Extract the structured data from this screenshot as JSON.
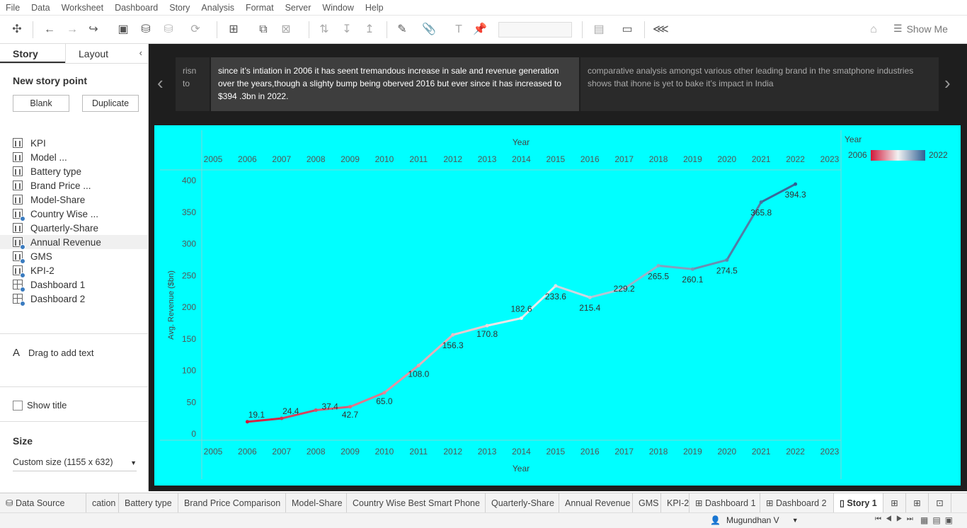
{
  "menu": [
    "File",
    "Data",
    "Worksheet",
    "Dashboard",
    "Story",
    "Analysis",
    "Format",
    "Server",
    "Window",
    "Help"
  ],
  "toolbar": {
    "show_me": "Show Me"
  },
  "sidebar": {
    "tabs": {
      "story": "Story",
      "layout": "Layout"
    },
    "new_story_point": "New story point",
    "blank_button": "Blank",
    "duplicate_button": "Duplicate",
    "sheets": [
      {
        "label": "KPI",
        "type": "sheet",
        "dot": false
      },
      {
        "label": "Model ...",
        "type": "sheet",
        "dot": false
      },
      {
        "label": "Battery type",
        "type": "sheet",
        "dot": false
      },
      {
        "label": "Brand Price ...",
        "type": "sheet",
        "dot": false
      },
      {
        "label": "Model-Share",
        "type": "sheet",
        "dot": false
      },
      {
        "label": "Country Wise ...",
        "type": "sheet",
        "dot": true
      },
      {
        "label": "Quarterly-Share",
        "type": "sheet",
        "dot": false
      },
      {
        "label": "Annual Revenue",
        "type": "sheet",
        "dot": true
      },
      {
        "label": "GMS",
        "type": "sheet",
        "dot": true
      },
      {
        "label": "KPI-2",
        "type": "sheet",
        "dot": true
      },
      {
        "label": "Dashboard 1",
        "type": "dashboard",
        "dot": true
      },
      {
        "label": "Dashboard 2",
        "type": "dashboard",
        "dot": true
      }
    ],
    "drag_text": "Drag to add text",
    "show_title": "Show title",
    "size_title": "Size",
    "size_value": "Custom size (1155 x 632)"
  },
  "story": {
    "captions": [
      {
        "text": "risn to",
        "state": "dim"
      },
      {
        "text": "since it’s intiation in 2006 it has seent tremandous increase   in sale and revenue generation over the  years,though a slighty bump being oberved 2016 but ever since it has increased to $394 .3bn in 2022.",
        "state": "active"
      },
      {
        "text": "comparative analysis amongst various other leading brand in the smatphone industries shows that ihone is yet to bake it’s impact in India",
        "state": "dim"
      }
    ]
  },
  "chart_data": {
    "type": "line",
    "title": "",
    "xlabel": "Year",
    "ylabel": "Avg. Revenue ($bn)",
    "x_ticks": [
      2005,
      2006,
      2007,
      2008,
      2009,
      2010,
      2011,
      2012,
      2013,
      2014,
      2015,
      2016,
      2017,
      2018,
      2019,
      2020,
      2021,
      2022,
      2023
    ],
    "y_ticks": [
      0,
      50,
      100,
      150,
      200,
      250,
      300,
      350,
      400
    ],
    "xlim": [
      2005,
      2023
    ],
    "ylim": [
      0,
      400
    ],
    "x": [
      2006,
      2007,
      2008,
      2009,
      2010,
      2011,
      2012,
      2013,
      2014,
      2015,
      2016,
      2017,
      2018,
      2019,
      2020,
      2021,
      2022
    ],
    "values": [
      19.1,
      24.4,
      37.4,
      42.7,
      65.0,
      108.0,
      156.3,
      170.8,
      182.6,
      233.6,
      215.4,
      229.2,
      265.5,
      260.1,
      274.5,
      365.8,
      394.3
    ],
    "labels": [
      "19.1",
      "24.4",
      "37.4",
      "42.7",
      "65.0",
      "108.0",
      "156.3",
      "170.8",
      "182.6",
      "233.6",
      "215.4",
      "229.2",
      "265.5",
      "260.1",
      "274.5",
      "365.8",
      "394.3"
    ],
    "legend": {
      "title": "Year",
      "min_label": "2006",
      "max_label": "2022",
      "placement": "top-right"
    },
    "colors": {
      "low": "#d1183a",
      "mid": "#f2f2f2",
      "high": "#2e5f93",
      "background": "#00ffff"
    },
    "grid": false
  },
  "bottom_tabs": [
    {
      "label": "Data Source",
      "icon": "database-icon"
    },
    {
      "label": "cation",
      "icon": ""
    },
    {
      "label": "Battery type",
      "icon": ""
    },
    {
      "label": "Brand Price Comparison",
      "icon": ""
    },
    {
      "label": "Model-Share",
      "icon": ""
    },
    {
      "label": "Country Wise Best Smart Phone",
      "icon": ""
    },
    {
      "label": "Quarterly-Share",
      "icon": ""
    },
    {
      "label": "Annual Revenue",
      "icon": ""
    },
    {
      "label": "GMS",
      "icon": ""
    },
    {
      "label": "KPI-2",
      "icon": ""
    },
    {
      "label": "Dashboard 1",
      "icon": "dashboard-icon"
    },
    {
      "label": "Dashboard 2",
      "icon": "dashboard-icon"
    },
    {
      "label": "Story 1",
      "icon": "story-icon"
    }
  ],
  "status": {
    "user": "Mugundhan V"
  }
}
